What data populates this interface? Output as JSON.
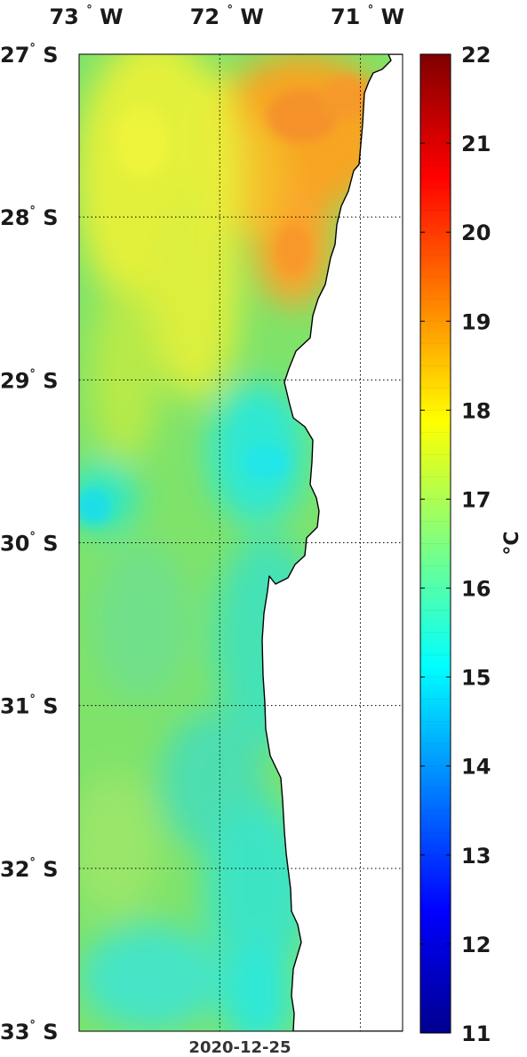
{
  "map": {
    "date": "2020-12-25",
    "lon_labels": [
      {
        "deg": "73",
        "hemi": "W",
        "value": -73
      },
      {
        "deg": "72",
        "hemi": "W",
        "value": -72
      },
      {
        "deg": "71",
        "hemi": "W",
        "value": -71
      }
    ],
    "lat_labels": [
      {
        "deg": "27",
        "hemi": "S",
        "value": -27
      },
      {
        "deg": "28",
        "hemi": "S",
        "value": -28
      },
      {
        "deg": "29",
        "hemi": "S",
        "value": -29
      },
      {
        "deg": "30",
        "hemi": "S",
        "value": -30
      },
      {
        "deg": "31",
        "hemi": "S",
        "value": -31
      },
      {
        "deg": "32",
        "hemi": "S",
        "value": -32
      },
      {
        "deg": "33",
        "hemi": "S",
        "value": -33
      }
    ],
    "lon_range": [
      -73.0,
      -70.7
    ],
    "lat_range": [
      -33.0,
      -27.0
    ],
    "degree_symbol": "°"
  },
  "colorbar": {
    "unit": "°C",
    "min": 11,
    "max": 22,
    "ticks": [
      "11",
      "12",
      "13",
      "14",
      "15",
      "16",
      "17",
      "18",
      "19",
      "20",
      "21",
      "22"
    ]
  },
  "colors": {
    "land": "#ffffff",
    "coast": "#000000",
    "grid": "#000000"
  }
}
